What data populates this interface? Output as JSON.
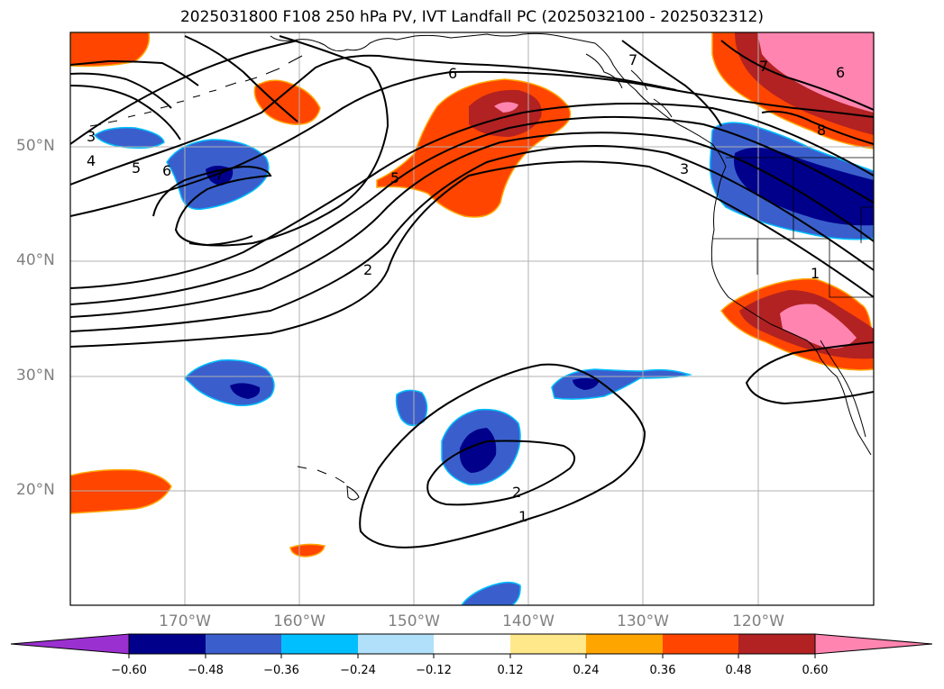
{
  "title": "2025031800 F108 250 hPa PV, IVT Landfall PC (2025032100 - 2025032312)",
  "latitude_labels": [
    "50°N",
    "40°N",
    "30°N",
    "20°N"
  ],
  "longitude_labels": [
    "170°W",
    "160°W",
    "150°W",
    "140°W",
    "130°W",
    "120°W"
  ],
  "contour_labels": [
    "6",
    "7",
    "7",
    "6",
    "8",
    "3",
    "3",
    "4",
    "5",
    "6",
    "7",
    "5",
    "2",
    "1",
    "2",
    "1"
  ],
  "colorbar": {
    "tick_labels": [
      "−0.60",
      "−0.48",
      "−0.36",
      "−0.24",
      "−0.12",
      "0.12",
      "0.24",
      "0.36",
      "0.48",
      "0.60"
    ],
    "colors": [
      "#9b30d0",
      "#00008b",
      "#3a5fcd",
      "#00bfff",
      "#b0e0fa",
      "#ffffff",
      "#ffe88a",
      "#ffa500",
      "#ff4500",
      "#b22222",
      "#ff85b0"
    ]
  }
}
